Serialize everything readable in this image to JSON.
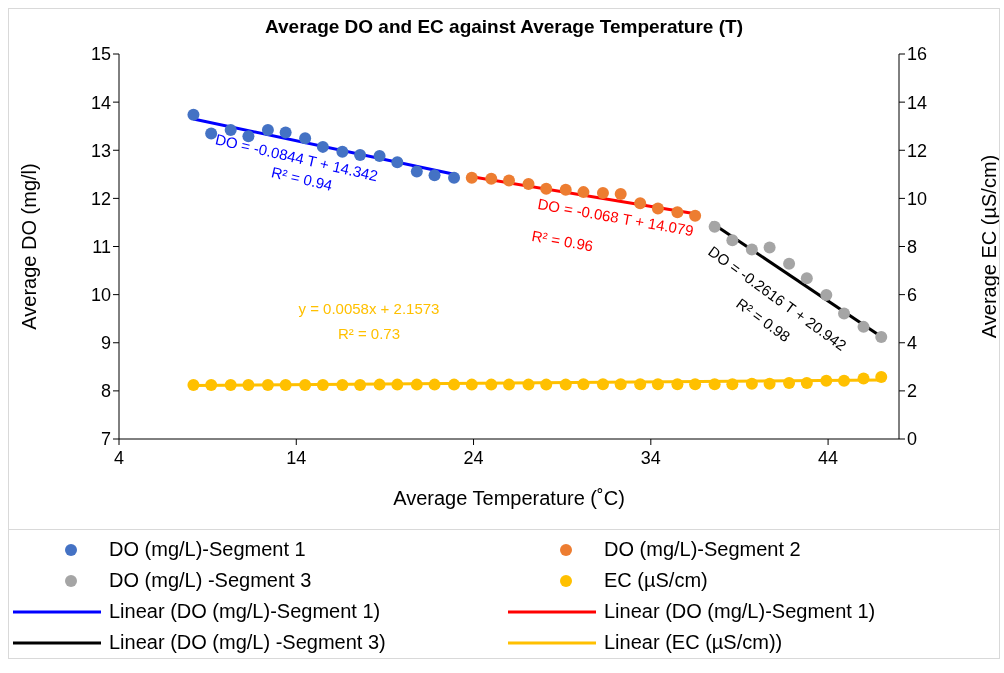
{
  "chart_data": {
    "type": "scatter",
    "title": "Average DO and EC against Average Temperature (T)",
    "xlabel": "Average Temperature (˚C)",
    "ylabel": "Average DO (mg/l)",
    "y2label": "Average EC (µS/cm)",
    "xlim": [
      4,
      48
    ],
    "xticks": [
      4,
      14,
      24,
      34,
      44
    ],
    "ylim": [
      7,
      15
    ],
    "yticks": [
      7,
      8,
      9,
      10,
      11,
      12,
      13,
      14,
      15
    ],
    "y2lim": [
      0,
      16
    ],
    "y2ticks": [
      0,
      2,
      4,
      6,
      8,
      10,
      12,
      14,
      16
    ],
    "grid": false,
    "legend": "bottom",
    "series": [
      {
        "name": "DO (mg/L)-Segment 1",
        "marker": "circle",
        "color": "#4472c4",
        "x": [
          8.2,
          9.2,
          10.3,
          11.3,
          12.4,
          13.4,
          14.5,
          15.5,
          16.6,
          17.6,
          18.7,
          19.7,
          20.8,
          21.8,
          22.9
        ],
        "values": [
          13.74,
          13.35,
          13.42,
          13.29,
          13.42,
          13.37,
          13.25,
          13.07,
          12.97,
          12.9,
          12.88,
          12.75,
          12.56,
          12.48,
          12.43
        ]
      },
      {
        "name": "DO (mg/L)-Segment 2",
        "marker": "circle",
        "color": "#ed7d31",
        "x": [
          23.9,
          25.0,
          26.0,
          27.1,
          28.1,
          29.2,
          30.2,
          31.3,
          32.3,
          33.4,
          34.4,
          35.5,
          36.5
        ],
        "values": [
          12.43,
          12.41,
          12.37,
          12.3,
          12.2,
          12.18,
          12.13,
          12.11,
          12.09,
          11.9,
          11.79,
          11.71,
          11.64
        ]
      },
      {
        "name": "DO (mg/L) -Segment 3",
        "marker": "circle",
        "color": "#a5a5a5",
        "x": [
          37.6,
          38.6,
          39.7,
          40.7,
          41.8,
          42.8,
          43.9,
          44.9,
          46.0,
          47.0
        ],
        "values": [
          11.41,
          11.13,
          10.94,
          10.98,
          10.64,
          10.34,
          9.99,
          9.61,
          9.33,
          9.12
        ]
      },
      {
        "name": "EC (µS/cm)",
        "marker": "circle",
        "axis": "y2",
        "color": "#ffc000",
        "x": [
          8.2,
          9.2,
          10.3,
          11.3,
          12.4,
          13.4,
          14.5,
          15.5,
          16.6,
          17.6,
          18.7,
          19.7,
          20.8,
          21.8,
          22.9,
          23.9,
          25.0,
          26.0,
          27.1,
          28.1,
          29.2,
          30.2,
          31.3,
          32.3,
          33.4,
          34.4,
          35.5,
          36.5,
          37.6,
          38.6,
          39.7,
          40.7,
          41.8,
          42.8,
          43.9,
          44.9,
          46.0,
          47.0
        ],
        "values": [
          2.24,
          2.24,
          2.24,
          2.24,
          2.24,
          2.24,
          2.24,
          2.24,
          2.24,
          2.24,
          2.26,
          2.26,
          2.26,
          2.26,
          2.26,
          2.26,
          2.26,
          2.26,
          2.26,
          2.26,
          2.26,
          2.28,
          2.28,
          2.28,
          2.28,
          2.28,
          2.28,
          2.28,
          2.28,
          2.28,
          2.3,
          2.3,
          2.33,
          2.33,
          2.42,
          2.42,
          2.51,
          2.58
        ]
      },
      {
        "name": "Linear (DO (mg/L)-Segment 1)",
        "type": "line",
        "color": "#0000ff",
        "x": [
          8.2,
          22.9
        ],
        "values": [
          13.65,
          12.5
        ]
      },
      {
        "name": "Linear (DO (mg/L)-Segment 1)",
        "type": "line",
        "color": "#ff0000",
        "x": [
          23.9,
          36.5
        ],
        "values": [
          12.45,
          11.68
        ]
      },
      {
        "name": "Linear (DO (mg/L) -Segment 3)",
        "type": "line",
        "color": "#000000",
        "x": [
          37.4,
          46.9
        ],
        "values": [
          11.5,
          9.15
        ]
      },
      {
        "name": "Linear (EC (µS/cm))",
        "type": "line",
        "axis": "y2",
        "color": "#ffc000",
        "x": [
          8.2,
          47.0
        ],
        "values": [
          2.22,
          2.45
        ]
      }
    ],
    "annotations": [
      "DO = -0.0844 T + 14.342",
      "R² = 0.94",
      "DO = -0.068 T + 14.079",
      "R² = 0.96",
      "DO = -0.2616 T + 20.942",
      "R² = 0.98",
      "y = 0.0058x + 2.1573",
      "R² = 0.73"
    ]
  }
}
